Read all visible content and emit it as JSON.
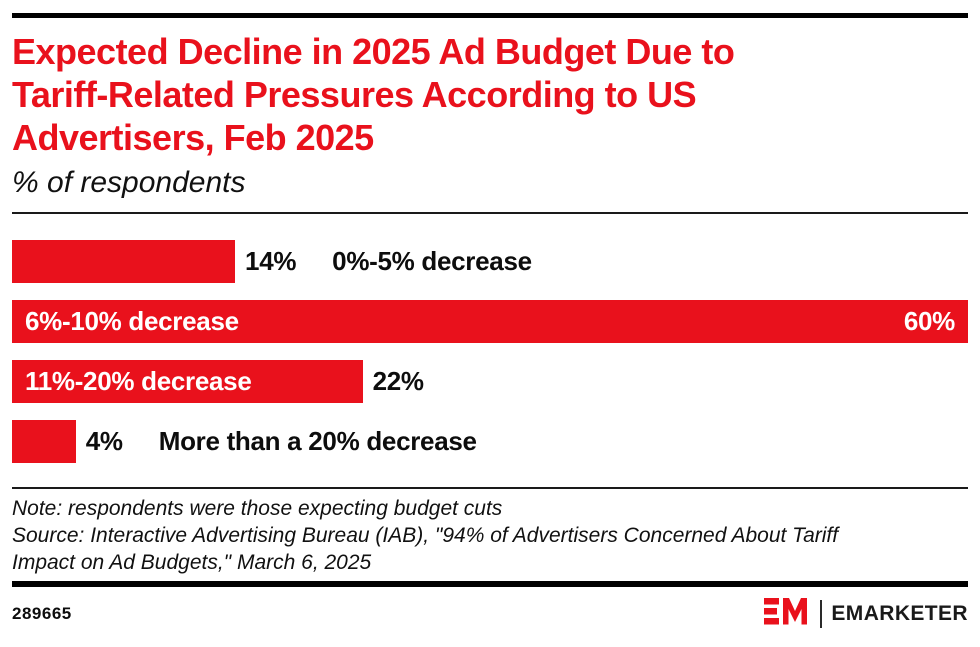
{
  "accent_red": "#E9111C",
  "header": {
    "title": "Expected Decline in 2025 Ad Budget Due to Tariff-Related Pressures According to US Advertisers, Feb 2025",
    "title_lines": [
      "Expected Decline in 2025 Ad Budget Due to",
      "Tariff-Related Pressures According to US",
      "Advertisers, Feb 2025"
    ],
    "subtitle": "% of respondents"
  },
  "chart_data": {
    "type": "bar",
    "orientation": "horizontal",
    "unit": "% of respondents",
    "title": "Expected Decline in 2025 Ad Budget Due to Tariff-Related Pressures According to US Advertisers, Feb 2025",
    "categories": [
      "0%-5% decrease",
      "6%-10% decrease",
      "11%-20% decrease",
      "More than a 20% decrease"
    ],
    "values": [
      14,
      60,
      22,
      4
    ],
    "xlim": [
      0,
      60
    ],
    "bar_color": "#E9111C",
    "grid": false,
    "bars": [
      {
        "category": "0%-5% decrease",
        "value": 14,
        "value_label": "14%",
        "label_inside": false,
        "value_inside": false
      },
      {
        "category": "6%-10% decrease",
        "value": 60,
        "value_label": "60%",
        "label_inside": true,
        "value_inside": true
      },
      {
        "category": "11%-20% decrease",
        "value": 22,
        "value_label": "22%",
        "label_inside": true,
        "value_inside": false
      },
      {
        "category": "More than a 20% decrease",
        "value": 4,
        "value_label": "4%",
        "label_inside": false,
        "value_inside": false
      }
    ]
  },
  "footnote": {
    "note": "Note: respondents were those expecting budget cuts",
    "source_lines": [
      "Source: Interactive Advertising Bureau (IAB), \"94% of Advertisers Concerned About Tariff",
      "Impact on Ad Budgets,\" March 6, 2025"
    ]
  },
  "footer": {
    "chart_id": "289665",
    "brand": "EMARKETER",
    "logo_monogram": "EM"
  }
}
